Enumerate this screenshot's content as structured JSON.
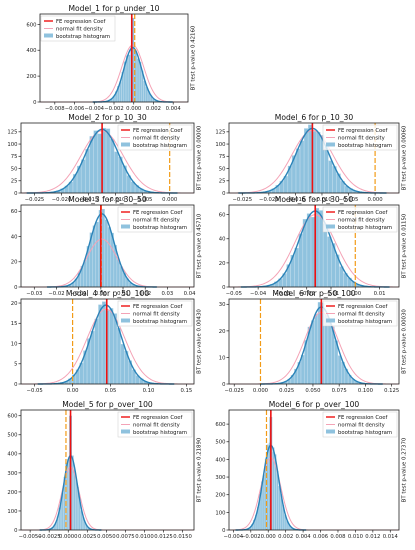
{
  "colors": {
    "bar": "#8fc2de",
    "bar_edge": "#a9d0e6",
    "kde": "#2b83b8",
    "normal": "#f4a3b6",
    "fe_line": "#ee1111",
    "bt_line": "#f29b17",
    "axis": "#222222"
  },
  "legend_labels": {
    "fe": "FE regression Coef",
    "normal": "normal fit density",
    "hist": "bootstrap histogram"
  },
  "chart_data": [
    {
      "type": "bar",
      "title": "Model_1 for p_under_10",
      "side_label": "BT test p-value 0.42160",
      "xlim": [
        -0.0095,
        0.0055
      ],
      "ylim": [
        0,
        680
      ],
      "xticks": [
        -0.008,
        -0.006,
        -0.004,
        -0.002,
        0.0,
        0.002,
        0.004
      ],
      "xtick_labels": [
        "−0.008",
        "−0.006",
        "−0.004",
        "−0.002",
        "0.000",
        "0.002",
        "0.004"
      ],
      "yticks": [
        0,
        200,
        400,
        600
      ],
      "ytick_labels": [
        "0",
        "200",
        "400",
        "600"
      ],
      "mean": -0.0001,
      "sd": 0.0009,
      "kde_peak": 420,
      "normal_peak": 440,
      "spike": 650,
      "fe_coef": -0.0002,
      "bt_line": 0.0001,
      "show_legend": true
    },
    {
      "type": "bar",
      "title": "Model_2 for p_10_30",
      "side_label": "BT test p-value 0.00000",
      "xlim": [
        -0.0275,
        0.0045
      ],
      "ylim": [
        0,
        143
      ],
      "xticks": [
        -0.025,
        -0.02,
        -0.015,
        -0.01,
        -0.005,
        0.0
      ],
      "xtick_labels": [
        "−0.025",
        "−0.020",
        "−0.015",
        "−0.010",
        "−0.005",
        "0.000"
      ],
      "yticks": [
        0,
        25,
        50,
        75,
        100,
        125
      ],
      "ytick_labels": [
        "0",
        "25",
        "50",
        "75",
        "100",
        "125"
      ],
      "mean": -0.0125,
      "sd": 0.0031,
      "kde_peak": 130,
      "normal_peak": 127,
      "fe_coef": -0.0125,
      "bt_line": 0.0,
      "show_legend": true
    },
    {
      "type": "bar",
      "title": "Model_6 for p_10_30",
      "side_label": "BT test p-value 0.00060",
      "xlim": [
        -0.0275,
        0.0045
      ],
      "ylim": [
        0,
        143
      ],
      "xticks": [
        -0.025,
        -0.02,
        -0.015,
        -0.01,
        -0.005,
        0.0
      ],
      "xtick_labels": [
        "−0.025",
        "−0.020",
        "−0.015",
        "−0.010",
        "−0.005",
        "0.000"
      ],
      "yticks": [
        0,
        25,
        50,
        75,
        100,
        125
      ],
      "ytick_labels": [
        "0",
        "25",
        "50",
        "75",
        "100",
        "125"
      ],
      "mean": -0.0118,
      "sd": 0.0031,
      "kde_peak": 132,
      "normal_peak": 128,
      "fe_coef": -0.0118,
      "bt_line": 0.0,
      "show_legend": true
    },
    {
      "type": "bar",
      "title": "Model_3 for p_30_50",
      "side_label": "BT test p-value 0.45710",
      "xlim": [
        -0.036,
        0.042
      ],
      "ylim": [
        0,
        65
      ],
      "xticks": [
        -0.03,
        -0.02,
        -0.01,
        0.0,
        0.01,
        0.02,
        0.03,
        0.04
      ],
      "xtick_labels": [
        "−0.03",
        "−0.02",
        "−0.01",
        "0.00",
        "0.01",
        "0.02",
        "0.03",
        "0.04"
      ],
      "yticks": [
        0,
        20,
        40,
        60
      ],
      "ytick_labels": [
        "0",
        "20",
        "40",
        "60"
      ],
      "mean": 0.0005,
      "sd": 0.0055,
      "kde_peak": 58,
      "normal_peak": 38,
      "fe_coef": 0.0,
      "bt_line": 0.0002,
      "show_legend": true
    },
    {
      "type": "bar",
      "title": "Model_6 for p_30_50",
      "side_label": "BT test p-value 0.01150",
      "xlim": [
        -0.052,
        0.018
      ],
      "ylim": [
        0,
        68
      ],
      "xticks": [
        -0.05,
        -0.04,
        -0.03,
        -0.02,
        -0.01,
        0.0,
        0.01
      ],
      "xtick_labels": [
        "−0.05",
        "−0.04",
        "−0.03",
        "−0.02",
        "−0.01",
        "0.00",
        "0.01"
      ],
      "yticks": [
        0,
        20,
        40,
        60
      ],
      "ytick_labels": [
        "0",
        "20",
        "40",
        "60"
      ],
      "mean": -0.0165,
      "sd": 0.0068,
      "kde_peak": 63,
      "normal_peak": 60,
      "fe_coef": -0.0165,
      "bt_line": 0.0,
      "show_legend": true
    },
    {
      "type": "bar",
      "title": "Model_4 for p_50_100",
      "side_label": "BT test p-value 0.00430",
      "xlim": [
        -0.068,
        0.16
      ],
      "ylim": [
        0,
        21
      ],
      "xticks": [
        -0.05,
        0.0,
        0.05,
        0.1,
        0.15
      ],
      "xtick_labels": [
        "−0.05",
        "0.00",
        "0.05",
        "0.10",
        "0.15"
      ],
      "yticks": [
        0,
        5,
        10,
        15,
        20
      ],
      "ytick_labels": [
        "0",
        "5",
        "10",
        "15",
        "20"
      ],
      "mean": 0.044,
      "sd": 0.02,
      "kde_peak": 19.5,
      "normal_peak": 18.5,
      "fe_coef": 0.045,
      "bt_line": 0.0,
      "show_legend": true
    },
    {
      "type": "bar",
      "title": "Model_6 for p_50_100",
      "side_label": "BT test p-value 0.00030",
      "xlim": [
        -0.03,
        0.132
      ],
      "ylim": [
        0,
        32
      ],
      "xticks": [
        -0.025,
        0.0,
        0.025,
        0.05,
        0.075,
        0.1,
        0.125
      ],
      "xtick_labels": [
        "−0.025",
        "0.000",
        "0.025",
        "0.050",
        "0.075",
        "0.100",
        "0.125"
      ],
      "yticks": [
        0,
        10,
        20,
        30
      ],
      "ytick_labels": [
        "0",
        "10",
        "20",
        "30"
      ],
      "mean": 0.058,
      "sd": 0.013,
      "kde_peak": 29,
      "normal_peak": 27,
      "fe_coef": 0.058,
      "bt_line": 0.0,
      "show_legend": true
    },
    {
      "type": "bar",
      "title": "Model_5 for p_over_100",
      "side_label": "BT test p-value 0.21890",
      "xlim": [
        -0.0062,
        0.0165
      ],
      "ylim": [
        0,
        630
      ],
      "xticks": [
        -0.005,
        -0.0025,
        0.0,
        0.0025,
        0.005,
        0.0075,
        0.01,
        0.0125,
        0.015
      ],
      "xtick_labels": [
        "−0.0050",
        "−0.0025",
        "0.0000",
        "0.0025",
        "0.0050",
        "0.0075",
        "0.0100",
        "0.0125",
        "0.0150"
      ],
      "yticks": [
        0,
        100,
        200,
        300,
        400,
        500,
        600
      ],
      "ytick_labels": [
        "0",
        "100",
        "200",
        "300",
        "400",
        "500",
        "600"
      ],
      "mean": 0.0003,
      "sd": 0.0009,
      "kde_peak": 390,
      "normal_peak": 330,
      "spike": 600,
      "fe_coef": 0.0003,
      "bt_line": -0.0003,
      "show_legend": true
    },
    {
      "type": "bar",
      "title": "Model_6 for p_over_100",
      "side_label": "BT test p-value 0.27370",
      "xlim": [
        -0.0045,
        0.015
      ],
      "ylim": [
        0,
        680
      ],
      "xticks": [
        -0.004,
        -0.002,
        0.0,
        0.002,
        0.004,
        0.006,
        0.008,
        0.01,
        0.012,
        0.014
      ],
      "xtick_labels": [
        "−0.004",
        "−0.002",
        "0.000",
        "0.002",
        "0.004",
        "0.006",
        "0.008",
        "0.010",
        "0.012",
        "0.014"
      ],
      "yticks": [
        0,
        100,
        200,
        300,
        400,
        500,
        600
      ],
      "ytick_labels": [
        "0",
        "100",
        "200",
        "300",
        "400",
        "500",
        "600"
      ],
      "mean": 0.0003,
      "sd": 0.0009,
      "kde_peak": 480,
      "normal_peak": 410,
      "spike": 640,
      "fe_coef": 0.0003,
      "bt_line": -0.0002,
      "show_legend": true
    }
  ]
}
